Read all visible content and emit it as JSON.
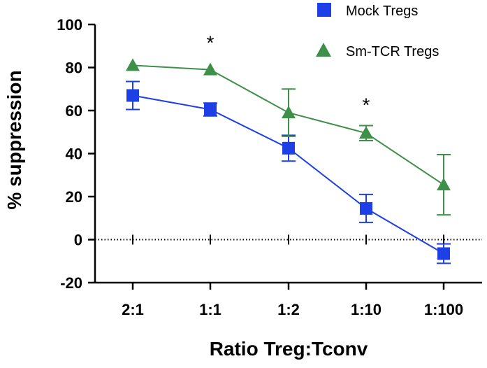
{
  "chart_data": {
    "type": "line",
    "title": "",
    "xlabel": "Ratio Treg:Tconv",
    "ylabel": "% suppression",
    "categories": [
      "2:1",
      "1:1",
      "1:2",
      "1:10",
      "1:100"
    ],
    "ylim": [
      -20,
      100
    ],
    "yticks": [
      -20,
      0,
      20,
      40,
      60,
      80,
      100
    ],
    "grid": false,
    "legend_position": "top-right",
    "reference_line": {
      "y": 0,
      "style": "dotted"
    },
    "series": [
      {
        "name": "Mock Tregs",
        "marker": "square",
        "color": "#1f3fe6",
        "values": [
          67,
          60.5,
          42.5,
          14.5,
          -6.5
        ],
        "error": [
          6.5,
          3,
          6,
          6.5,
          4.5
        ]
      },
      {
        "name": "Sm-TCR Tregs",
        "marker": "triangle",
        "color": "#3e8f49",
        "values": [
          81,
          79,
          59,
          49.5,
          25.5
        ],
        "error": [
          0,
          0,
          11,
          3.5,
          14
        ]
      }
    ],
    "annotations": [
      {
        "text": "*",
        "category": "1:1",
        "y": 93
      },
      {
        "text": "*",
        "category": "1:10",
        "y": 64
      }
    ]
  }
}
